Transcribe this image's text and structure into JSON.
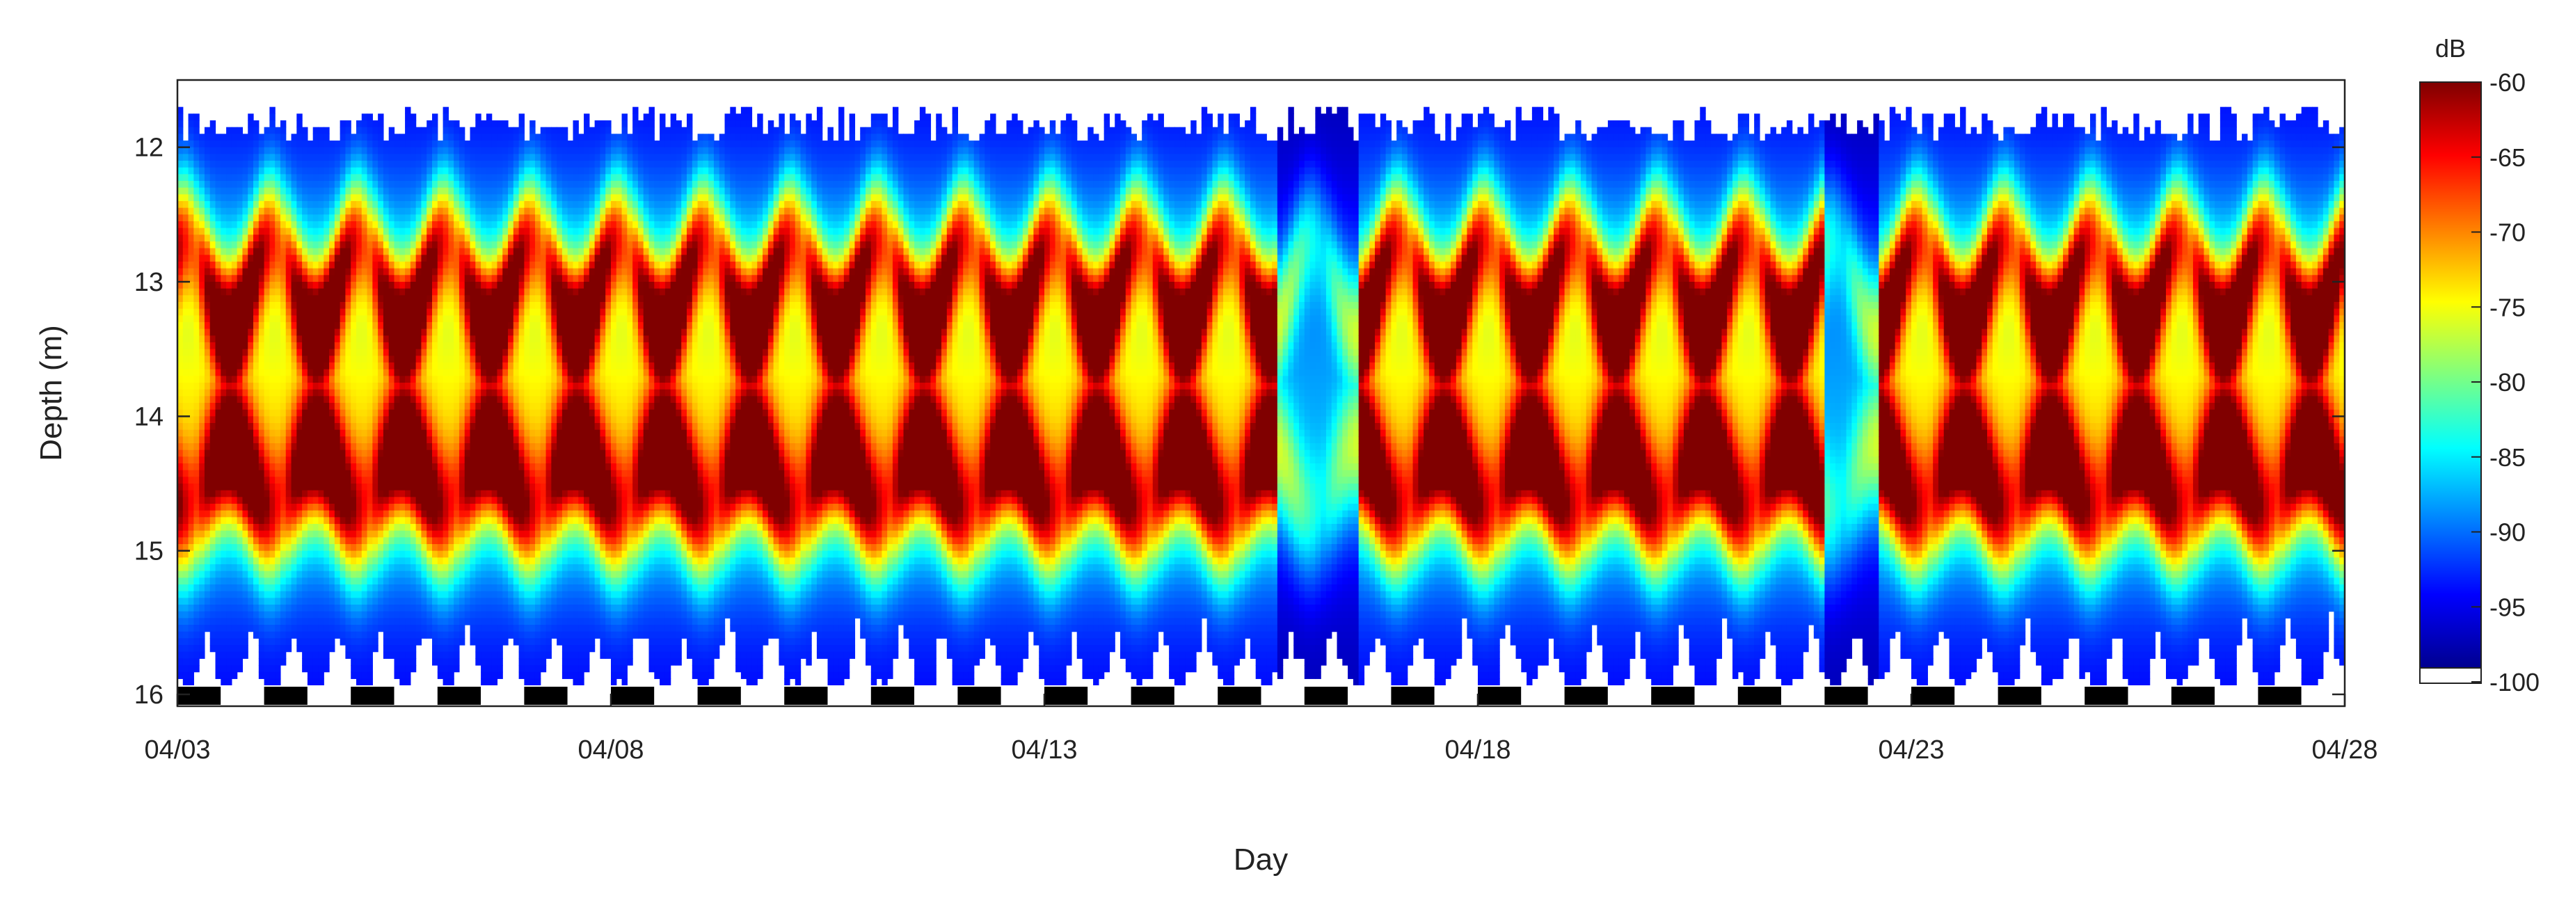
{
  "chart_data": {
    "type": "heatmap",
    "title": "",
    "xlabel": "Day",
    "ylabel": "Depth (m)",
    "x_tick_labels": [
      "04/03",
      "04/08",
      "04/13",
      "04/18",
      "04/23",
      "04/28"
    ],
    "x_tick_days": [
      3,
      8,
      13,
      18,
      23,
      28
    ],
    "xlim_days": [
      3,
      28
    ],
    "y_ticks": [
      12,
      13,
      14,
      15,
      16
    ],
    "ylim": [
      11.5,
      16
    ],
    "y_reversed": true,
    "colorbar": {
      "label": "dB",
      "ticks": [
        -60,
        -65,
        -70,
        -75,
        -80,
        -85,
        -90,
        -95,
        -100
      ],
      "range": [
        -100,
        -60
      ],
      "colormap": "jet",
      "below_range_color": "#ffffff"
    },
    "day_night_bar": {
      "day_color": "#ffffff",
      "night_color": "#000000"
    },
    "pattern": {
      "description": "periodic backscatter bands",
      "peak_dB": -60,
      "background_dB": -100,
      "core_depths_m": [
        13.0,
        14.5
      ]
    }
  }
}
